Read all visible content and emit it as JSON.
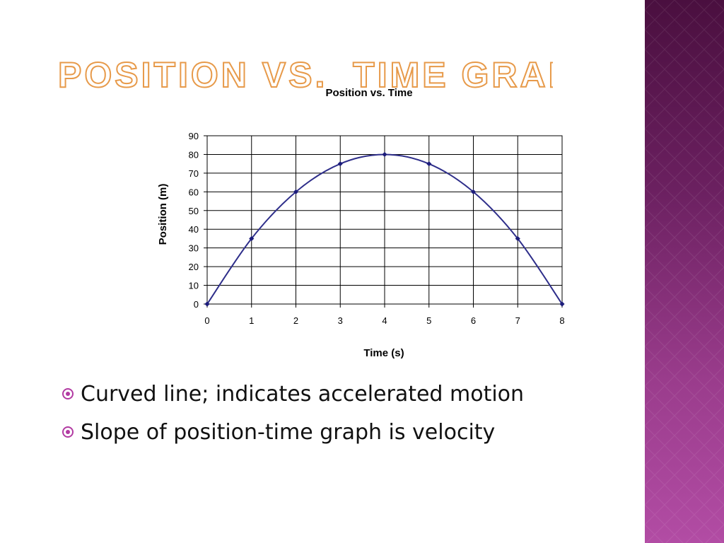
{
  "slide": {
    "title": "Position vs.  Time Graph",
    "bullets": [
      "Curved line; indicates accelerated motion",
      "Slope of position-time graph is velocity"
    ]
  },
  "colors": {
    "title_outline": "#e79a4a",
    "panel_dark": "#4a0f3f",
    "panel_light": "#b24ca4",
    "bullet": "#b23aa2",
    "series_line": "#2e2e8a",
    "series_marker": "#1c1c7a"
  },
  "icons": {
    "bullet": "ring-dot-icon"
  },
  "chart_data": {
    "type": "scatter",
    "title": "Position vs. Time",
    "xlabel": "Time (s)",
    "ylabel": "Position (m)",
    "xlim": [
      0,
      8
    ],
    "ylim": [
      0,
      90
    ],
    "x_ticks": [
      0,
      1,
      2,
      3,
      4,
      5,
      6,
      7,
      8
    ],
    "y_ticks": [
      0,
      10,
      20,
      30,
      40,
      50,
      60,
      70,
      80,
      90
    ],
    "grid": true,
    "legend": "none",
    "smooth_line": true,
    "series": [
      {
        "x": [
          0,
          1,
          2,
          3,
          4,
          5,
          6,
          7,
          8
        ],
        "y": [
          0,
          35,
          60,
          75,
          80,
          75,
          60,
          35,
          0
        ]
      }
    ]
  }
}
